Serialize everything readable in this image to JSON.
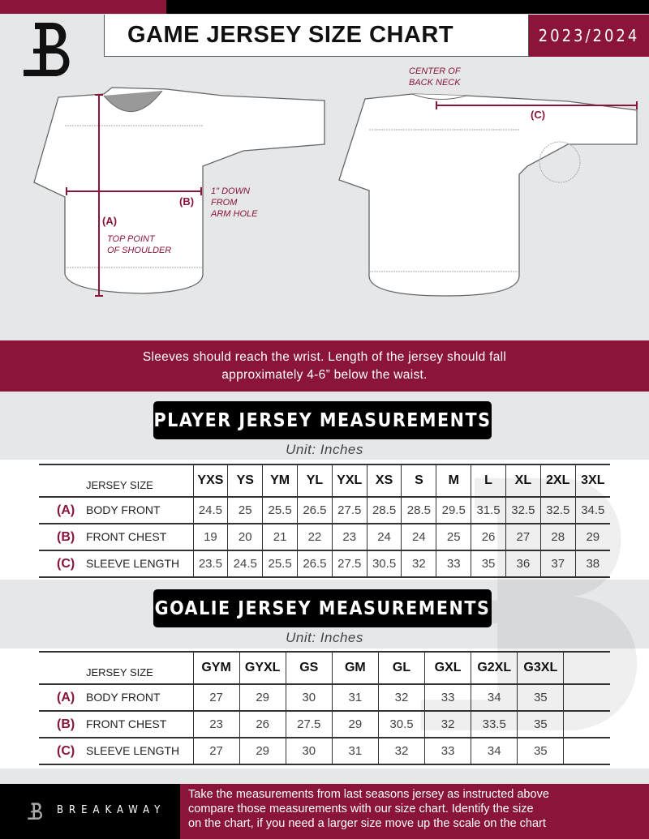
{
  "header": {
    "title": "GAME JERSEY SIZE CHART",
    "season": "2023/2024",
    "logo_letter": "B"
  },
  "diagram": {
    "front_labels": {
      "a": "(A)",
      "b": "(B)",
      "a_note": [
        "TOP POINT",
        "OF SHOULDER"
      ],
      "b_note": [
        "1\" DOWN",
        "FROM",
        "ARM HOLE"
      ]
    },
    "back_labels": {
      "c": "(C)",
      "c_note": [
        "CENTER OF",
        "BACK NECK"
      ]
    }
  },
  "instructions": [
    "Sleeves should reach the wrist. Length of the jersey should fall",
    "approximately 4-6” below the waist."
  ],
  "player": {
    "title": "PLAYER JERSEY MEASUREMENTS",
    "unit": "Unit: Inches",
    "size_header": "JERSEY SIZE",
    "sizes": [
      "YXS",
      "YS",
      "YM",
      "YL",
      "YXL",
      "XS",
      "S",
      "M",
      "L",
      "XL",
      "2XL",
      "3XL"
    ],
    "rows": [
      {
        "code": "(A)",
        "label": "BODY FRONT",
        "values": [
          "24.5",
          "25",
          "25.5",
          "26.5",
          "27.5",
          "28.5",
          "28.5",
          "29.5",
          "31.5",
          "32.5",
          "32.5",
          "34.5"
        ]
      },
      {
        "code": "(B)",
        "label": "FRONT CHEST",
        "values": [
          "19",
          "20",
          "21",
          "22",
          "23",
          "24",
          "24",
          "25",
          "26",
          "27",
          "28",
          "29"
        ]
      },
      {
        "code": "(C)",
        "label": "SLEEVE LENGTH",
        "values": [
          "23.5",
          "24.5",
          "25.5",
          "26.5",
          "27.5",
          "30.5",
          "32",
          "33",
          "35",
          "36",
          "37",
          "38"
        ]
      }
    ]
  },
  "goalie": {
    "title": "GOALIE JERSEY MEASUREMENTS",
    "unit": "Unit: Inches",
    "size_header": "JERSEY SIZE",
    "sizes": [
      "GYM",
      "GYXL",
      "GS",
      "GM",
      "GL",
      "GXL",
      "G2XL",
      "G3XL",
      ""
    ],
    "rows": [
      {
        "code": "(A)",
        "label": "BODY FRONT",
        "values": [
          "27",
          "29",
          "30",
          "31",
          "32",
          "33",
          "34",
          "35",
          ""
        ]
      },
      {
        "code": "(B)",
        "label": "FRONT CHEST",
        "values": [
          "23",
          "26",
          "27.5",
          "29",
          "30.5",
          "32",
          "33.5",
          "35",
          ""
        ]
      },
      {
        "code": "(C)",
        "label": "SLEEVE LENGTH",
        "values": [
          "27",
          "29",
          "30",
          "31",
          "32",
          "33",
          "34",
          "35",
          ""
        ]
      }
    ]
  },
  "footer": {
    "brand": "BREAKAWAY",
    "text": [
      "Take the measurements from last seasons jersey as instructed above",
      "compare those measurements  with our size chart. Identify the size",
      "on the chart, if you need a larger size move up the scale on the chart"
    ]
  },
  "colors": {
    "accent": "#8a1538",
    "background": "#e6e7e8",
    "dark": "#000000"
  }
}
